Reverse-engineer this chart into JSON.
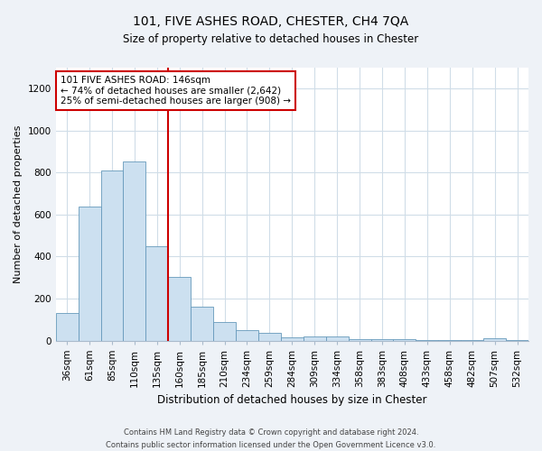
{
  "title": "101, FIVE ASHES ROAD, CHESTER, CH4 7QA",
  "subtitle": "Size of property relative to detached houses in Chester",
  "xlabel": "Distribution of detached houses by size in Chester",
  "ylabel": "Number of detached properties",
  "categories": [
    "36sqm",
    "61sqm",
    "85sqm",
    "110sqm",
    "135sqm",
    "160sqm",
    "185sqm",
    "210sqm",
    "234sqm",
    "259sqm",
    "284sqm",
    "309sqm",
    "334sqm",
    "358sqm",
    "383sqm",
    "408sqm",
    "433sqm",
    "458sqm",
    "482sqm",
    "507sqm",
    "532sqm"
  ],
  "values": [
    130,
    640,
    810,
    855,
    450,
    305,
    160,
    90,
    50,
    35,
    15,
    20,
    20,
    5,
    5,
    5,
    2,
    2,
    2,
    10,
    2
  ],
  "bar_color": "#cce0f0",
  "bar_edge_color": "#6699bb",
  "highlight_line_color": "#cc0000",
  "annotation_text": "101 FIVE ASHES ROAD: 146sqm\n← 74% of detached houses are smaller (2,642)\n25% of semi-detached houses are larger (908) →",
  "annotation_box_color": "#ffffff",
  "annotation_box_edge": "#cc0000",
  "ylim": [
    0,
    1300
  ],
  "yticks": [
    0,
    200,
    400,
    600,
    800,
    1000,
    1200
  ],
  "footer_line1": "Contains HM Land Registry data © Crown copyright and database right 2024.",
  "footer_line2": "Contains public sector information licensed under the Open Government Licence v3.0.",
  "bg_color": "#eef2f7",
  "plot_bg_color": "#ffffff",
  "grid_color": "#d0dde8",
  "title_fontsize": 10,
  "subtitle_fontsize": 8.5,
  "xlabel_fontsize": 8.5,
  "ylabel_fontsize": 8,
  "tick_fontsize": 7.5,
  "annotation_fontsize": 7.5,
  "footer_fontsize": 6
}
